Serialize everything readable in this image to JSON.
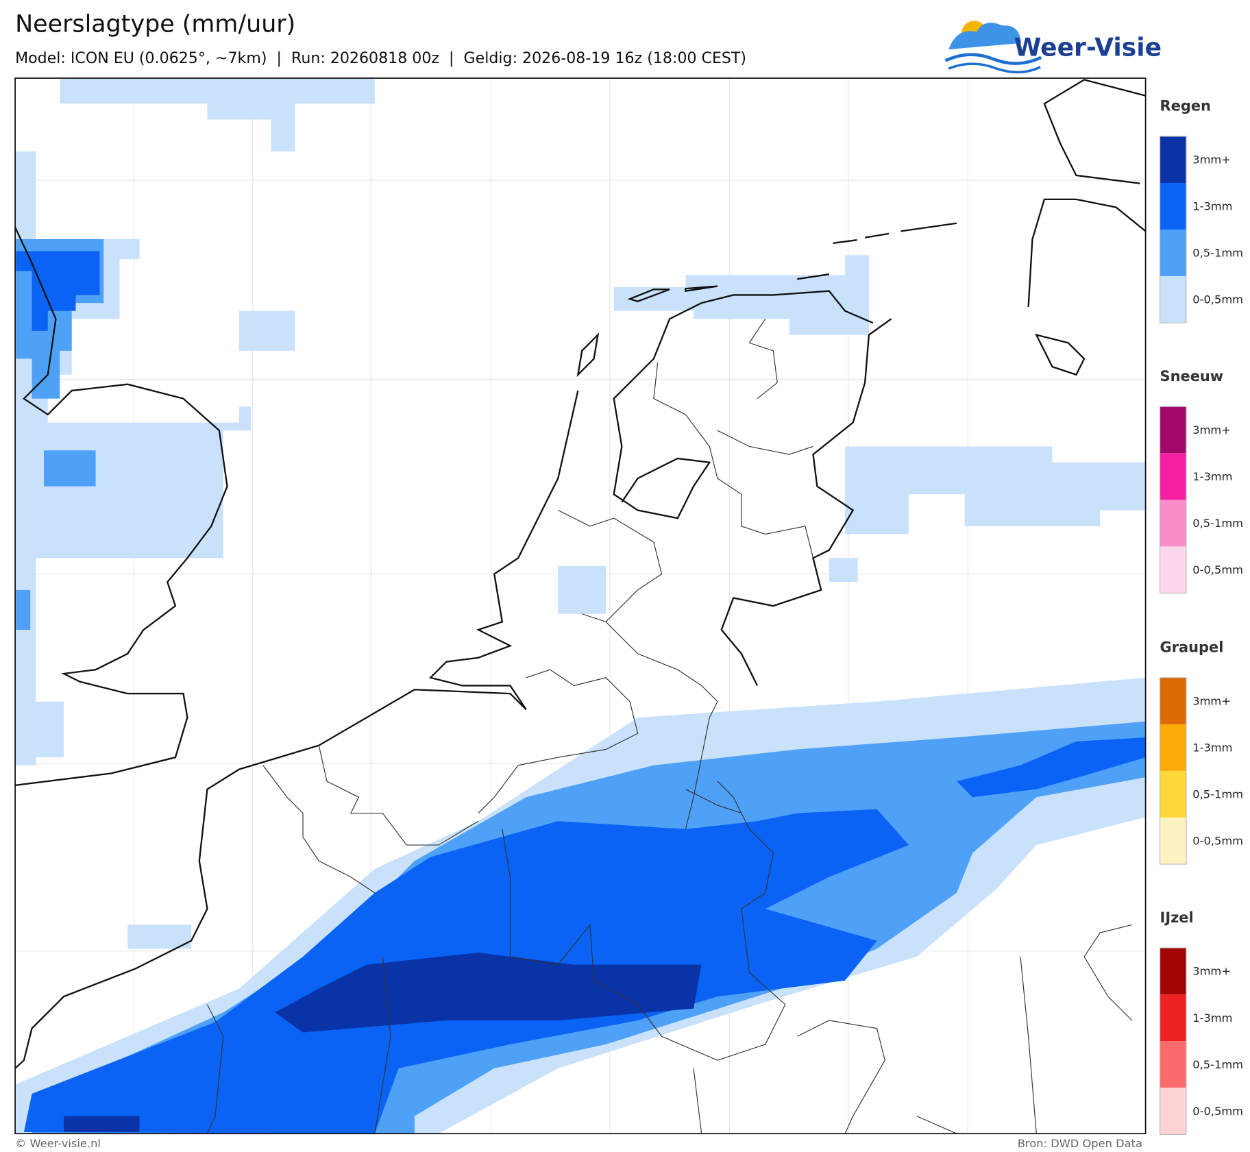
{
  "header": {
    "title": "Neerslagtype (mm/uur)",
    "subtitle": "Model: ICON EU (0.0625°, ~7km)  |  Run: 20260818 00z  |  Geldig: 2026-08-19 16z (18:00 CEST)"
  },
  "logo": {
    "text": "Weer-Visie"
  },
  "legend": {
    "sections": [
      {
        "title": "Regen",
        "levels": [
          {
            "label": "3mm+",
            "color": "#0a33a8"
          },
          {
            "label": "1-3mm",
            "color": "#0a63f5"
          },
          {
            "label": "0,5-1mm",
            "color": "#4fa0f7"
          },
          {
            "label": "0-0,5mm",
            "color": "#c9e1fb"
          }
        ]
      },
      {
        "title": "Sneeuw",
        "levels": [
          {
            "label": "3mm+",
            "color": "#a3096a"
          },
          {
            "label": "1-3mm",
            "color": "#f41fa2"
          },
          {
            "label": "0,5-1mm",
            "color": "#f98ccb"
          },
          {
            "label": "0-0,5mm",
            "color": "#fcd7ec"
          }
        ]
      },
      {
        "title": "Graupel",
        "levels": [
          {
            "label": "3mm+",
            "color": "#dd6a06"
          },
          {
            "label": "1-3mm",
            "color": "#fcaa07"
          },
          {
            "label": "0,5-1mm",
            "color": "#fdd83a"
          },
          {
            "label": "0-0,5mm",
            "color": "#fdf2c4"
          }
        ]
      },
      {
        "title": "IJzel",
        "levels": [
          {
            "label": "3mm+",
            "color": "#a10404"
          },
          {
            "label": "1-3mm",
            "color": "#ee2222"
          },
          {
            "label": "0,5-1mm",
            "color": "#fb6b6b"
          },
          {
            "label": "0-0,5mm",
            "color": "#fdd2d2"
          }
        ]
      }
    ]
  },
  "footer": {
    "left": "© Weer-visie.nl",
    "right": "Bron: DWD Open Data"
  }
}
